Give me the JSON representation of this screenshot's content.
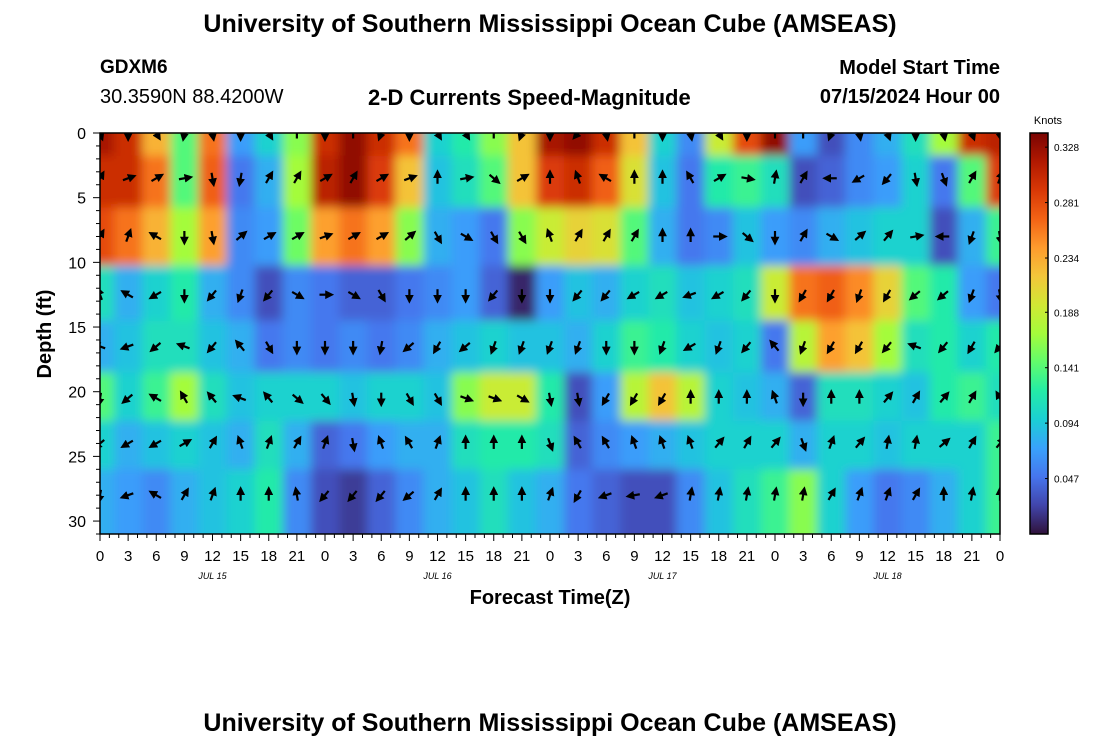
{
  "header": {
    "title": "University of Southern Mississippi Ocean Cube (AMSEAS)",
    "station": "GDXM6",
    "coords": "30.3590N  88.4200W",
    "parameter": "2-D Currents Speed-Magnitude",
    "model_start_label": "Model Start Time",
    "model_start_value": "07/15/2024 Hour 00"
  },
  "footer": {
    "title": "University of Southern Mississippi Ocean Cube (AMSEAS)"
  },
  "colorbar": {
    "unit": "Knots",
    "ticks": [
      "0.328",
      "0.281",
      "0.234",
      "0.188",
      "0.141",
      "0.094",
      "0.047"
    ],
    "tick_values": [
      0.328,
      0.281,
      0.234,
      0.188,
      0.141,
      0.094,
      0.047
    ],
    "range": [
      0.0,
      0.34
    ],
    "colors": [
      "#30123b",
      "#4145ab",
      "#4675ed",
      "#39a2fc",
      "#1bcfd4",
      "#24eca6",
      "#61fc6c",
      "#a4fc3b",
      "#d1e834",
      "#f3c63a",
      "#fe9b2d",
      "#f36315",
      "#d93806",
      "#b11901",
      "#7a0402"
    ]
  },
  "chart_data": {
    "type": "heatmap",
    "title": "2-D Currents Speed-Magnitude",
    "xlabel": "Forecast Time(Z)",
    "ylabel": "Depth (ft)",
    "x_tick_labels": [
      "0",
      "3",
      "6",
      "9",
      "12",
      "15",
      "18",
      "21",
      "0",
      "3",
      "6",
      "9",
      "12",
      "15",
      "18",
      "21",
      "0",
      "3",
      "6",
      "9",
      "12",
      "15",
      "18",
      "21",
      "0",
      "3",
      "6",
      "9",
      "12",
      "15",
      "18",
      "21",
      "0"
    ],
    "date_labels": [
      {
        "label": "JUL 15",
        "hour": 12
      },
      {
        "label": "JUL 16",
        "hour": 36
      },
      {
        "label": "JUL 17",
        "hour": 60
      },
      {
        "label": "JUL 18",
        "hour": 84
      }
    ],
    "x_range_hours": [
      0,
      96
    ],
    "y_range_ft": [
      0,
      31
    ],
    "y_ticks": [
      0,
      5,
      10,
      15,
      20,
      25,
      30
    ],
    "hours": [
      0,
      3,
      6,
      9,
      12,
      15,
      18,
      21,
      24,
      27,
      30,
      33,
      36,
      39,
      42,
      45,
      48,
      51,
      54,
      57,
      60,
      63,
      66,
      69,
      72,
      75,
      78,
      81,
      84,
      87,
      90,
      93,
      96
    ],
    "depths_ft": [
      0,
      3.5,
      8,
      12.5,
      16.5,
      20.5,
      24,
      28
    ],
    "speed_knots": [
      [
        0.32,
        0.3,
        0.23,
        0.14,
        0.26,
        0.07,
        0.1,
        0.16,
        0.3,
        0.33,
        0.3,
        0.26,
        0.1,
        0.12,
        0.16,
        0.22,
        0.32,
        0.33,
        0.3,
        0.22,
        0.1,
        0.06,
        0.19,
        0.28,
        0.33,
        0.07,
        0.03,
        0.06,
        0.08,
        0.11,
        0.17,
        0.3,
        0.31
      ],
      [
        0.3,
        0.3,
        0.26,
        0.14,
        0.27,
        0.05,
        0.08,
        0.17,
        0.31,
        0.33,
        0.29,
        0.22,
        0.09,
        0.11,
        0.14,
        0.22,
        0.29,
        0.3,
        0.27,
        0.2,
        0.09,
        0.05,
        0.12,
        0.13,
        0.11,
        0.03,
        0.04,
        0.06,
        0.07,
        0.1,
        0.05,
        0.14,
        0.29
      ],
      [
        0.28,
        0.26,
        0.23,
        0.17,
        0.24,
        0.06,
        0.07,
        0.15,
        0.24,
        0.26,
        0.24,
        0.16,
        0.08,
        0.07,
        0.05,
        0.16,
        0.19,
        0.21,
        0.2,
        0.14,
        0.08,
        0.05,
        0.06,
        0.09,
        0.07,
        0.06,
        0.08,
        0.09,
        0.1,
        0.1,
        0.03,
        0.08,
        0.13
      ],
      [
        0.11,
        0.08,
        0.1,
        0.12,
        0.08,
        0.06,
        0.03,
        0.06,
        0.05,
        0.04,
        0.04,
        0.05,
        0.06,
        0.07,
        0.04,
        0.01,
        0.07,
        0.09,
        0.08,
        0.1,
        0.11,
        0.09,
        0.1,
        0.11,
        0.19,
        0.26,
        0.27,
        0.25,
        0.21,
        0.14,
        0.12,
        0.07,
        0.05
      ],
      [
        0.08,
        0.09,
        0.11,
        0.11,
        0.09,
        0.08,
        0.05,
        0.06,
        0.05,
        0.06,
        0.05,
        0.06,
        0.08,
        0.09,
        0.1,
        0.09,
        0.09,
        0.08,
        0.1,
        0.13,
        0.12,
        0.1,
        0.09,
        0.1,
        0.05,
        0.18,
        0.24,
        0.22,
        0.17,
        0.11,
        0.12,
        0.1,
        0.12
      ],
      [
        0.14,
        0.1,
        0.13,
        0.17,
        0.11,
        0.09,
        0.1,
        0.1,
        0.1,
        0.09,
        0.1,
        0.1,
        0.09,
        0.16,
        0.19,
        0.19,
        0.12,
        0.03,
        0.07,
        0.18,
        0.22,
        0.18,
        0.1,
        0.09,
        0.08,
        0.04,
        0.11,
        0.11,
        0.1,
        0.09,
        0.12,
        0.13,
        0.11
      ],
      [
        0.1,
        0.08,
        0.09,
        0.1,
        0.09,
        0.08,
        0.11,
        0.08,
        0.04,
        0.05,
        0.07,
        0.08,
        0.08,
        0.11,
        0.12,
        0.12,
        0.11,
        0.04,
        0.06,
        0.07,
        0.08,
        0.09,
        0.1,
        0.1,
        0.1,
        0.08,
        0.1,
        0.1,
        0.09,
        0.1,
        0.1,
        0.1,
        0.13
      ],
      [
        0.08,
        0.07,
        0.06,
        0.08,
        0.09,
        0.1,
        0.12,
        0.06,
        0.03,
        0.02,
        0.04,
        0.06,
        0.08,
        0.09,
        0.11,
        0.09,
        0.08,
        0.05,
        0.04,
        0.03,
        0.03,
        0.06,
        0.09,
        0.11,
        0.13,
        0.16,
        0.1,
        0.07,
        0.05,
        0.06,
        0.08,
        0.1,
        0.13
      ]
    ],
    "direction_deg": [
      [
        160,
        180,
        150,
        190,
        170,
        180,
        150,
        0,
        180,
        0,
        200,
        180,
        150,
        150,
        0,
        200,
        180,
        220,
        170,
        0,
        180,
        170,
        150,
        180,
        0,
        0,
        200,
        170,
        160,
        180,
        170,
        160,
        170
      ],
      [
        30,
        70,
        60,
        80,
        170,
        190,
        30,
        30,
        60,
        30,
        60,
        70,
        0,
        80,
        130,
        60,
        0,
        340,
        300,
        0,
        0,
        330,
        60,
        100,
        10,
        30,
        270,
        240,
        220,
        170,
        160,
        30,
        20
      ],
      [
        30,
        20,
        300,
        180,
        170,
        50,
        60,
        60,
        70,
        60,
        60,
        50,
        150,
        120,
        150,
        150,
        340,
        30,
        30,
        30,
        0,
        0,
        90,
        130,
        180,
        30,
        120,
        50,
        40,
        80,
        270,
        200,
        170
      ],
      [
        340,
        300,
        240,
        180,
        220,
        200,
        220,
        120,
        90,
        120,
        150,
        180,
        180,
        180,
        220,
        180,
        180,
        220,
        220,
        240,
        240,
        250,
        240,
        220,
        180,
        210,
        210,
        200,
        210,
        230,
        230,
        200,
        170
      ],
      [
        290,
        250,
        230,
        290,
        220,
        320,
        150,
        180,
        180,
        180,
        190,
        230,
        210,
        230,
        200,
        200,
        200,
        200,
        180,
        180,
        200,
        240,
        200,
        220,
        320,
        200,
        210,
        210,
        220,
        290,
        220,
        210,
        220
      ],
      [
        190,
        230,
        300,
        330,
        320,
        290,
        320,
        130,
        140,
        170,
        180,
        150,
        150,
        110,
        110,
        120,
        170,
        170,
        210,
        210,
        210,
        0,
        0,
        0,
        340,
        180,
        0,
        0,
        40,
        30,
        40,
        30,
        330
      ],
      [
        230,
        240,
        240,
        60,
        30,
        340,
        20,
        30,
        20,
        170,
        340,
        330,
        20,
        0,
        0,
        0,
        160,
        330,
        330,
        340,
        340,
        340,
        40,
        30,
        40,
        160,
        20,
        40,
        10,
        10,
        50,
        30,
        40
      ],
      [
        190,
        250,
        300,
        30,
        20,
        0,
        0,
        350,
        220,
        220,
        220,
        230,
        30,
        0,
        0,
        0,
        20,
        210,
        250,
        260,
        250,
        10,
        10,
        10,
        10,
        10,
        30,
        20,
        20,
        30,
        0,
        10,
        0
      ]
    ]
  }
}
